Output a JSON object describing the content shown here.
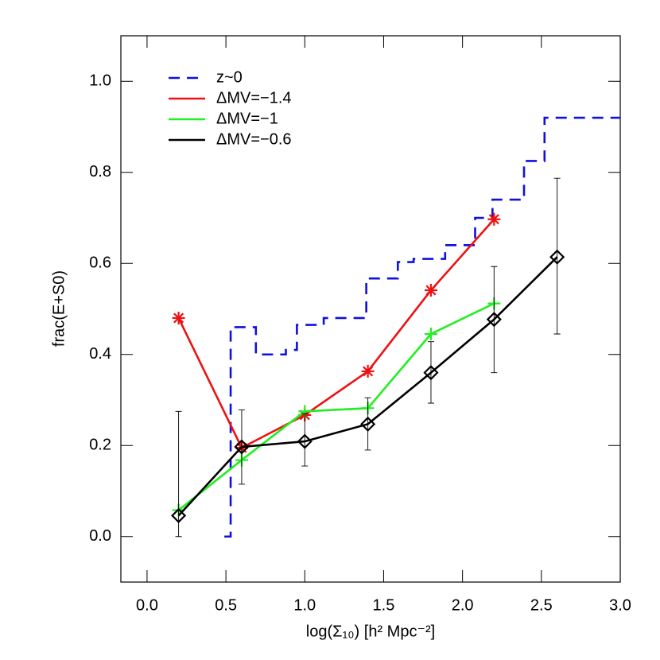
{
  "chart_data": {
    "type": "line",
    "xlabel": "log(Σ₁₀) [h² Mpc⁻²]",
    "ylabel": "frac(E+S0)",
    "xlim": [
      -0.166,
      3.0
    ],
    "ylim": [
      -0.1,
      1.1
    ],
    "xticks": [
      {
        "value": 0,
        "label": "0.0"
      },
      0.5,
      {
        "value": 1,
        "label": "1.0"
      },
      1.5,
      {
        "value": 2,
        "label": "2.0"
      },
      2.5,
      {
        "value": 3,
        "label": "3.0"
      }
    ],
    "yticks": [
      {
        "value": 0,
        "label": "0.0"
      },
      0.2,
      0.4,
      0.6,
      0.8,
      {
        "value": 1,
        "label": "1.0"
      }
    ],
    "legend": "upper left",
    "series": [
      {
        "name": "z~0",
        "color": "#1010dd",
        "style": "steps",
        "dash": true,
        "x": [
          0.49,
          0.53,
          0.69,
          0.88,
          0.95,
          1.12,
          1.39,
          1.59,
          1.69,
          1.89,
          2.08,
          2.19,
          2.39,
          2.52,
          3.0
        ],
        "values": [
          0.0,
          0.46,
          0.4,
          0.41,
          0.465,
          0.48,
          0.567,
          0.603,
          0.61,
          0.64,
          0.7,
          0.74,
          0.825,
          0.92,
          0.92
        ]
      },
      {
        "name": "ΔMV=−1.4",
        "color": "#ee1111",
        "style": "line",
        "marker": "asterisk",
        "x": [
          0.2,
          0.6,
          1.0,
          1.4,
          1.8,
          2.2
        ],
        "values": [
          0.48,
          0.195,
          0.267,
          0.363,
          0.541,
          0.697
        ]
      },
      {
        "name": "ΔMV=−1",
        "color": "#22ee22",
        "style": "line",
        "marker": "plus",
        "x": [
          0.2,
          0.6,
          1.0,
          1.4,
          1.8,
          2.2
        ],
        "values": [
          0.058,
          0.168,
          0.275,
          0.282,
          0.445,
          0.512
        ]
      },
      {
        "name": "ΔMV=−0.6",
        "color": "#000000",
        "style": "line",
        "marker": "diamond",
        "x": [
          0.2,
          0.6,
          1.0,
          1.4,
          1.8,
          2.2,
          2.6
        ],
        "values": [
          0.046,
          0.197,
          0.209,
          0.247,
          0.36,
          0.477,
          0.614
        ],
        "lower": [
          0.0,
          0.115,
          0.155,
          0.19,
          0.293,
          0.36,
          0.445
        ],
        "upper": [
          0.275,
          0.278,
          0.27,
          0.305,
          0.428,
          0.593,
          0.787
        ]
      }
    ]
  }
}
